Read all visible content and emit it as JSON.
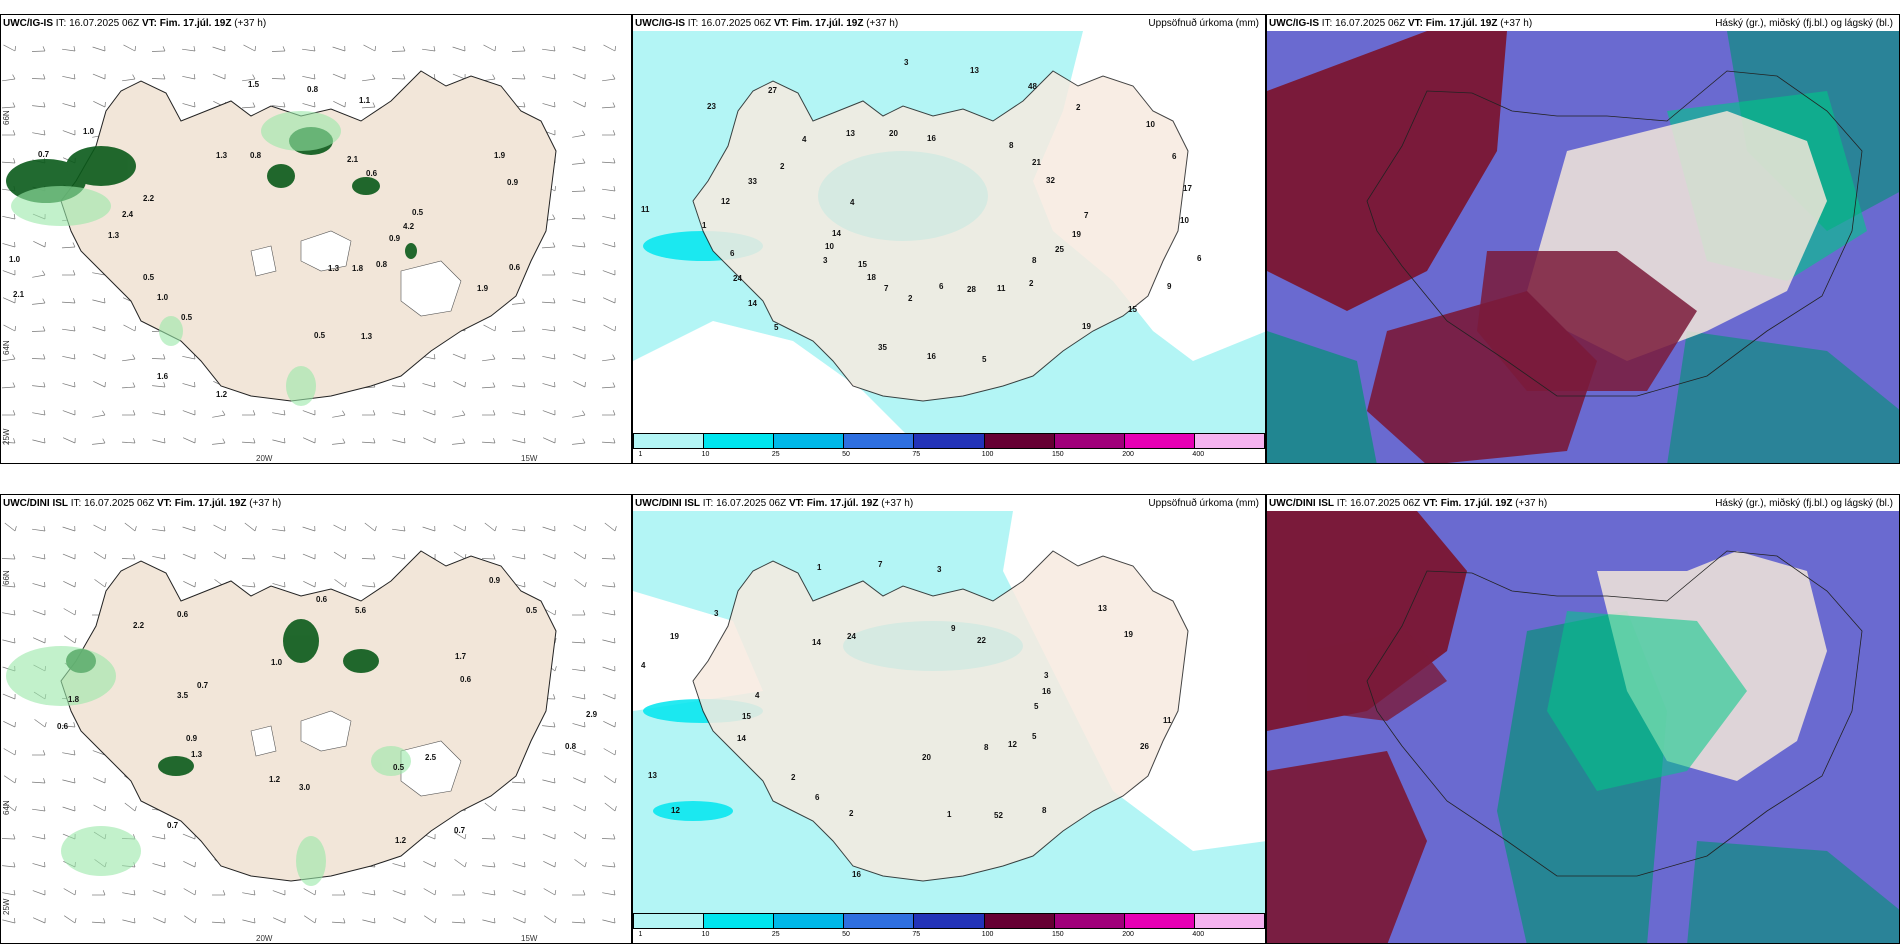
{
  "titles": {
    "ig_wind": {
      "model": "UWC/IG-IS",
      "it": "IT: 16.07.2025 06Z",
      "vt": "VT: Fim. 17.júl. 19Z",
      "lead": "(+37 h)"
    },
    "ig_prec": {
      "model": "UWC/IG-IS",
      "it": "IT: 16.07.2025 06Z",
      "vt": "VT: Fim. 17.júl. 19Z",
      "lead": "(+37 h)",
      "right": "Uppsöfnuð úrkoma (mm)"
    },
    "ig_cloud": {
      "model": "UWC/IG-IS",
      "it": "IT: 16.07.2025 06Z",
      "vt": "VT: Fim. 17.júl. 19Z",
      "lead": "(+37 h)",
      "right": "Háský (gr.), miðský (fj.bl.) og lágský (bl.)"
    },
    "dini_wind": {
      "model": "UWC/DINI ISL",
      "it": "IT: 16.07.2025 06Z",
      "vt": "VT: Fim. 17.júl. 19Z",
      "lead": "(+37 h)"
    },
    "dini_prec": {
      "model": "UWC/DINI ISL",
      "it": "IT: 16.07.2025 06Z",
      "vt": "VT: Fim. 17.júl. 19Z",
      "lead": "(+37 h)",
      "right": "Uppsöfnuð úrkoma (mm)"
    },
    "dini_cloud": {
      "model": "UWC/DINI ISL",
      "it": "IT: 16.07.2025 06Z",
      "vt": "VT: Fim. 17.júl. 19Z",
      "lead": "(+37 h)",
      "right": "Háský (gr.), miðský (fj.bl.) og lágský (bl.)"
    }
  },
  "axes": {
    "lon_20w": "20W",
    "lon_15w": "15W",
    "lat_66n": "66N",
    "lat_64n": "64N",
    "lon_25w": "25W"
  },
  "colorbar": {
    "ticks": [
      "1",
      "10",
      "25",
      "50",
      "75",
      "100",
      "150",
      "200",
      "400"
    ],
    "colors": [
      "#b3f5f5",
      "#00e5ee",
      "#00b8e8",
      "#2e6fe0",
      "#2333b8",
      "#660033",
      "#a0007a",
      "#e600b4",
      "#f5b3f0"
    ]
  },
  "colors": {
    "land": "#f2e6d9",
    "prec_light": "#b3f5f5",
    "prec_mid": "#00e5ee",
    "maroon": "#7a1a3a",
    "slate": "#6a6ad0",
    "teal": "#1a8a8a",
    "green": "#00c887"
  },
  "ig_wind_labels": [
    "0.9",
    "0.5",
    "1.1",
    "1.3",
    "2.2",
    "0.9",
    "1.6",
    "0.8",
    "1.9",
    "1.0",
    "0.6",
    "0.5",
    "1.0",
    "4.2",
    "1.0",
    "0.8",
    "1.8",
    "2.4",
    "1.9",
    "1.2",
    "1.3",
    "0.6",
    "2.1",
    "2.1",
    "1.3",
    "0.7",
    "0.5",
    "0.5",
    "1.5",
    "0.8",
    "1.3"
  ],
  "ig_prec_labels": [
    "8",
    "6",
    "2",
    "6",
    "2",
    "10",
    "15",
    "16",
    "19",
    "11",
    "32",
    "35",
    "27",
    "25",
    "24",
    "48",
    "28",
    "33",
    "17",
    "18",
    "20",
    "15",
    "14",
    "21",
    "16",
    "23",
    "19",
    "14",
    "13",
    "11",
    "12",
    "6",
    "7",
    "13",
    "9",
    "10",
    "8",
    "5",
    "4",
    "7",
    "5",
    "3",
    "2",
    "1",
    "10",
    "2",
    "4",
    "6",
    "3"
  ],
  "dini_wind_labels": [
    "0.5",
    "1.8",
    "0.5",
    "1.2",
    "0.6",
    "0.8",
    "0.9",
    "5.6",
    "1.2",
    "0.7",
    "0.6",
    "0.7",
    "1.0",
    "2.5",
    "0.6",
    "0.9",
    "3.0",
    "2.2",
    "2.9",
    "1.3",
    "0.6",
    "0.7",
    "3.5",
    "1.7"
  ],
  "dini_prec_labels": [
    "1",
    "3",
    "5",
    "2",
    "3",
    "8",
    "4",
    "19",
    "16",
    "24",
    "26",
    "13",
    "22",
    "52",
    "19",
    "16",
    "6",
    "7",
    "12",
    "15",
    "13",
    "20",
    "14",
    "11",
    "12",
    "9",
    "8",
    "4",
    "3",
    "2",
    "1",
    "5",
    "14"
  ]
}
